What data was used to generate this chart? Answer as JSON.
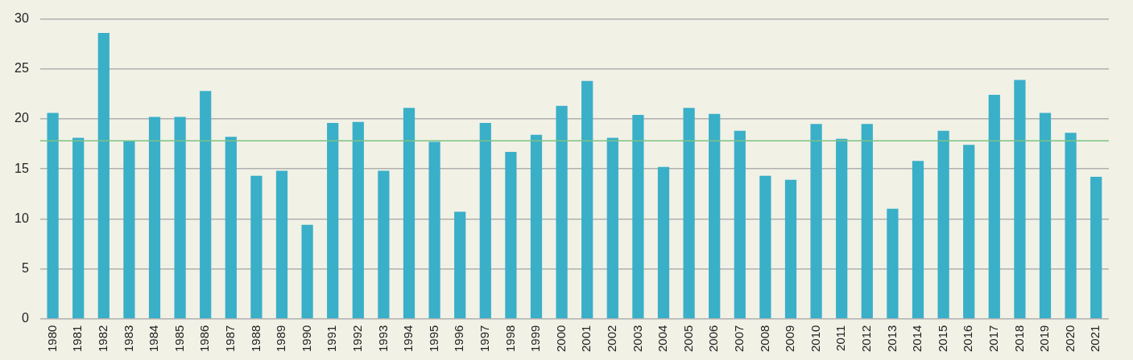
{
  "chart_data": {
    "type": "bar",
    "categories": [
      "1980",
      "1981",
      "1982",
      "1983",
      "1984",
      "1985",
      "1986",
      "1987",
      "1988",
      "1989",
      "1990",
      "1991",
      "1992",
      "1993",
      "1994",
      "1995",
      "1996",
      "1997",
      "1998",
      "1999",
      "2000",
      "2001",
      "2002",
      "2003",
      "2004",
      "2005",
      "2006",
      "2007",
      "2008",
      "2009",
      "2010",
      "2011",
      "2012",
      "2013",
      "2014",
      "2015",
      "2016",
      "2017",
      "2018",
      "2019",
      "2020",
      "2021"
    ],
    "values": [
      20.6,
      18.1,
      28.6,
      17.8,
      20.2,
      20.2,
      22.8,
      18.2,
      14.3,
      14.8,
      9.4,
      19.6,
      19.7,
      14.8,
      21.1,
      17.7,
      10.7,
      19.6,
      16.7,
      18.4,
      21.3,
      23.8,
      18.1,
      20.4,
      15.2,
      21.1,
      20.5,
      18.8,
      14.3,
      13.9,
      19.5,
      18.0,
      19.5,
      11.0,
      15.8,
      18.8,
      17.4,
      22.4,
      23.9,
      20.6,
      18.6,
      14.2
    ],
    "color": "#3aafc8",
    "ylim": [
      0,
      30
    ],
    "yticks": [
      0,
      5,
      10,
      15,
      20,
      25,
      30
    ],
    "grid": "y",
    "legend": false,
    "ref_lines": [
      {
        "axis": "y",
        "value": 17.8,
        "color": "#7dc383"
      }
    ]
  }
}
